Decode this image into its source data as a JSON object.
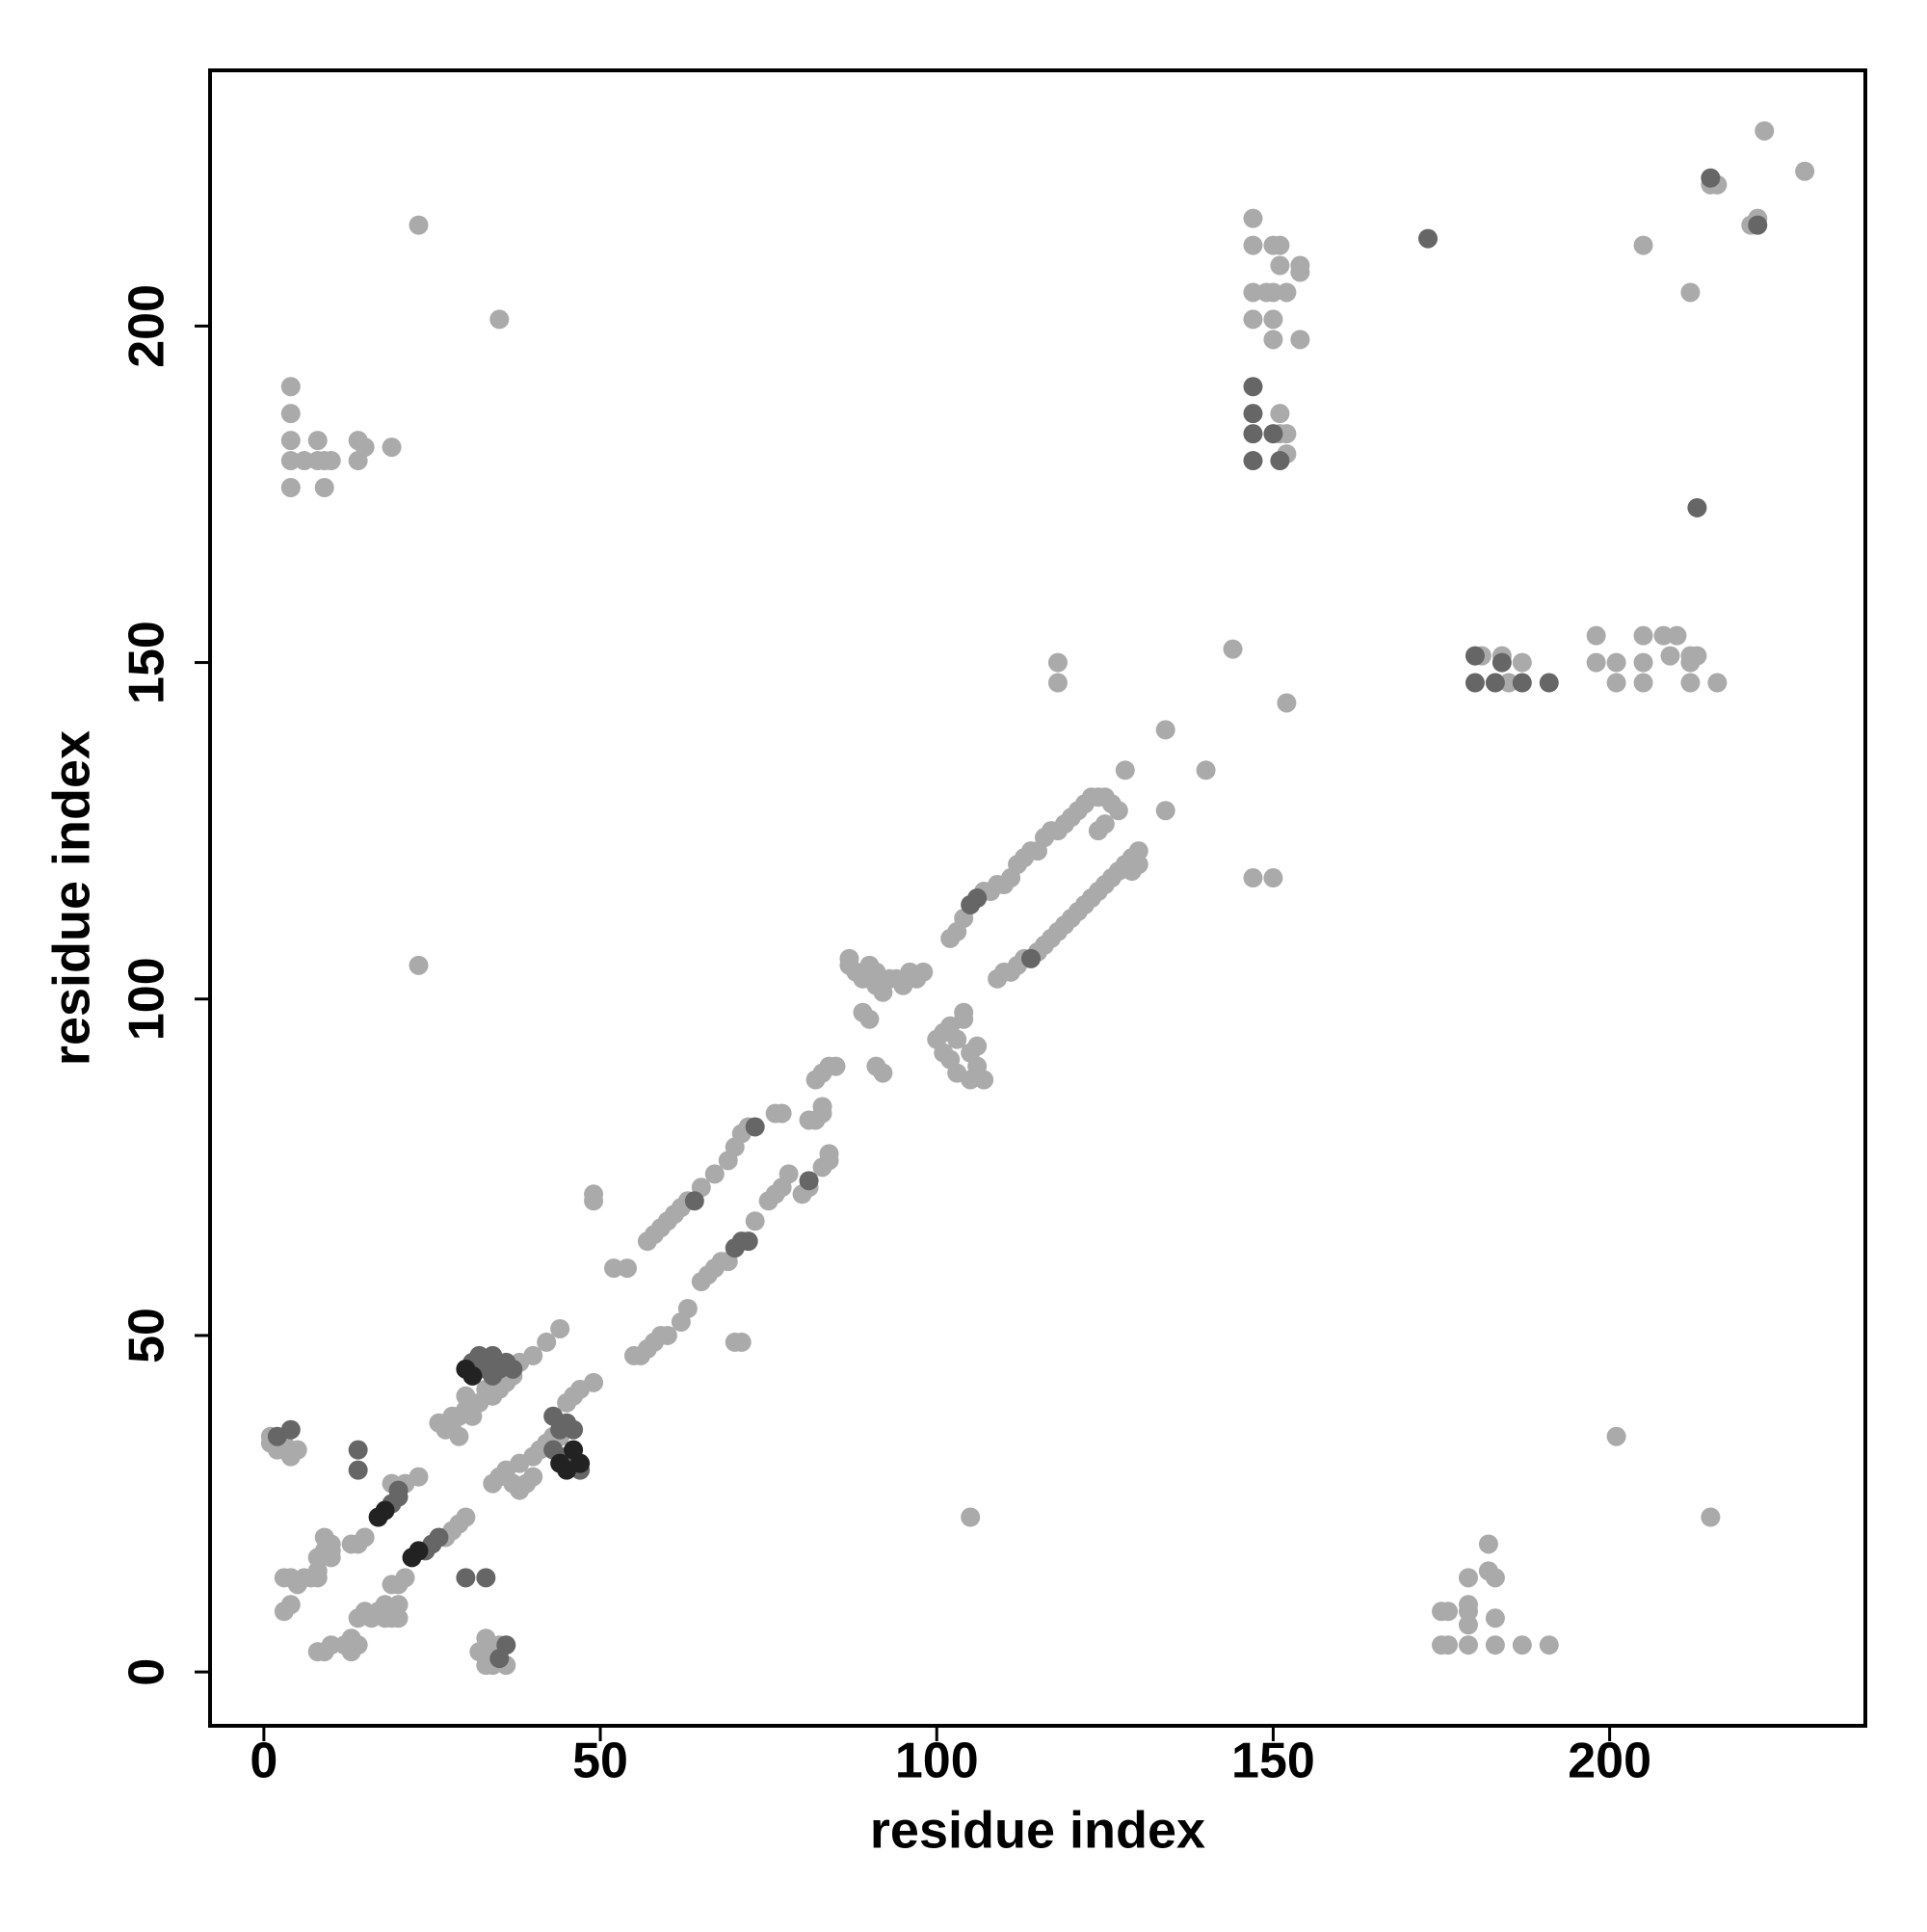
{
  "chart_data": {
    "type": "scatter",
    "xlabel": "residue index",
    "ylabel": "residue index",
    "xlim": [
      -8,
      238
    ],
    "ylim": [
      -8,
      238
    ],
    "xticks": [
      0,
      50,
      100,
      150,
      200
    ],
    "yticks": [
      0,
      50,
      100,
      150,
      200
    ],
    "series": [
      {
        "color": "#aaaaaa",
        "x": [
          4,
          4,
          4,
          4,
          4,
          6,
          8,
          8,
          9,
          9,
          10,
          14,
          14,
          15,
          19,
          23,
          35,
          23,
          147,
          147,
          147,
          147,
          149,
          150,
          151,
          150,
          150,
          151,
          152,
          154,
          154,
          150,
          154,
          151,
          151,
          152,
          152,
          205,
          212,
          215,
          216,
          223,
          229,
          221,
          222,
          144,
          152,
          118,
          118,
          147,
          150,
          181,
          184,
          185,
          187,
          198,
          198,
          201,
          201,
          205,
          205,
          205,
          208,
          210,
          212,
          212,
          213,
          212,
          216,
          209,
          201,
          215,
          105,
          175,
          176,
          175,
          176,
          179,
          179,
          179,
          179,
          179,
          182,
          182,
          183,
          183,
          183,
          187,
          191,
          1,
          1,
          2,
          3,
          3,
          4,
          5,
          3,
          4,
          5,
          3,
          4,
          6,
          7,
          8,
          8,
          8,
          9,
          9,
          10,
          10,
          10,
          13,
          14,
          15,
          8,
          9,
          10,
          12,
          13,
          13,
          14,
          14,
          15,
          16,
          17,
          18,
          18,
          19,
          20,
          20,
          20,
          19,
          21,
          19,
          21,
          23,
          30,
          29,
          27,
          28,
          32,
          33,
          33,
          34,
          34,
          36,
          35,
          33,
          26,
          27,
          28,
          28,
          29,
          29,
          30,
          30,
          31,
          32,
          33,
          34,
          35,
          36,
          37,
          38,
          40,
          42,
          44,
          34,
          35,
          36,
          37,
          38,
          38,
          39,
          40,
          40,
          41,
          42,
          43,
          44,
          45,
          46,
          47,
          49,
          49,
          49,
          52,
          54,
          57,
          58,
          59,
          60,
          61,
          62,
          63,
          65,
          67,
          69,
          70,
          71,
          72,
          76,
          77,
          82,
          83,
          84,
          85,
          87,
          87,
          88,
          89,
          90,
          90,
          91,
          91,
          92,
          93,
          94,
          95,
          96,
          97,
          98,
          89,
          90,
          55,
          56,
          57,
          58,
          59,
          60,
          62,
          63,
          65,
          66,
          67,
          68,
          69,
          73,
          70,
          71,
          75,
          76,
          77,
          78,
          80,
          81,
          81,
          82,
          83,
          83,
          84,
          84,
          83,
          91,
          92,
          100,
          101,
          101,
          102,
          102,
          103,
          103,
          104,
          104,
          105,
          105,
          106,
          106,
          107,
          102,
          103,
          104,
          107,
          108,
          109,
          110,
          111,
          112,
          113,
          114,
          115,
          116,
          117,
          118,
          119,
          120,
          121,
          122,
          123,
          124,
          125,
          126,
          127,
          125,
          124,
          109,
          110,
          111,
          112,
          113,
          115,
          116,
          117,
          118,
          119,
          120,
          121,
          122,
          123,
          124,
          125,
          126,
          127,
          128,
          129,
          130,
          130,
          129,
          128,
          134,
          134,
          140
        ],
        "values": [
          176,
          180,
          183,
          187,
          191,
          180,
          180,
          183,
          180,
          176,
          180,
          183,
          180,
          182,
          182,
          215,
          201,
          105,
          216,
          212,
          205,
          201,
          205,
          212,
          212,
          205,
          201,
          209,
          205,
          209,
          208,
          198,
          198,
          187,
          184,
          184,
          181,
          212,
          205,
          221,
          221,
          229,
          223,
          215,
          216,
          152,
          144,
          150,
          147,
          118,
          118,
          151,
          151,
          147,
          150,
          154,
          150,
          150,
          147,
          154,
          150,
          147,
          154,
          154,
          151,
          150,
          151,
          147,
          147,
          151,
          35,
          23,
          23,
          9,
          9,
          4,
          4,
          4,
          7,
          9,
          10,
          14,
          15,
          19,
          14,
          8,
          4,
          4,
          4,
          34,
          35,
          33,
          34,
          33,
          32,
          33,
          9,
          10,
          13,
          14,
          14,
          14,
          14,
          14,
          15,
          17,
          18,
          20,
          18,
          19,
          17,
          19,
          19,
          20,
          3,
          3,
          4,
          4,
          5,
          3,
          4,
          8,
          9,
          8,
          9,
          8,
          10,
          8,
          8,
          10,
          13,
          13,
          14,
          28,
          28,
          29,
          23,
          22,
          20,
          21,
          3,
          3,
          1,
          1,
          2,
          1,
          4,
          5,
          37,
          36,
          37,
          38,
          35,
          38,
          39,
          41,
          38,
          40,
          42,
          41,
          42,
          43,
          44,
          46,
          47,
          49,
          51,
          28,
          29,
          30,
          28,
          27,
          31,
          28,
          29,
          32,
          33,
          34,
          35,
          35,
          40,
          41,
          42,
          43,
          70,
          71,
          60,
          60,
          64,
          65,
          66,
          67,
          68,
          69,
          70,
          72,
          74,
          76,
          78,
          80,
          81,
          83,
          83,
          88,
          89,
          90,
          90,
          105,
          106,
          104,
          103,
          103,
          105,
          102,
          104,
          101,
          103,
          103,
          102,
          104,
          103,
          104,
          98,
          97,
          47,
          47,
          48,
          49,
          50,
          50,
          52,
          54,
          58,
          59,
          60,
          61,
          61,
          67,
          49,
          49,
          70,
          71,
          72,
          74,
          71,
          72,
          82,
          82,
          83,
          84,
          76,
          77,
          75,
          90,
          89,
          94,
          92,
          95,
          91,
          96,
          89,
          94,
          97,
          98,
          92,
          88,
          93,
          90,
          88,
          109,
          110,
          112,
          116,
          116,
          117,
          117,
          118,
          120,
          121,
          122,
          122,
          124,
          125,
          125,
          126,
          127,
          128,
          129,
          130,
          130,
          130,
          129,
          128,
          126,
          125,
          103,
          104,
          104,
          105,
          106,
          107,
          108,
          109,
          110,
          111,
          112,
          113,
          114,
          115,
          116,
          117,
          118,
          119,
          120,
          121,
          122,
          120,
          119,
          134,
          140,
          128,
          134
        ]
      },
      {
        "color": "#666666",
        "x": [
          147,
          147,
          147,
          147,
          150,
          151,
          173,
          215,
          222,
          213,
          180,
          180,
          183,
          187,
          191,
          184,
          2,
          4,
          19,
          20,
          20,
          14,
          14,
          24,
          25,
          26,
          30,
          33,
          35,
          36,
          32,
          33,
          34,
          35,
          36,
          37,
          31,
          33,
          34,
          43,
          45,
          46,
          47,
          44,
          45,
          43,
          64,
          73,
          81,
          70,
          71,
          72,
          105,
          106,
          114
        ],
        "values": [
          191,
          187,
          184,
          180,
          184,
          180,
          213,
          222,
          215,
          173,
          147,
          151,
          147,
          147,
          147,
          150,
          35,
          36,
          25,
          26,
          27,
          33,
          30,
          18,
          19,
          20,
          14,
          14,
          2,
          4,
          47,
          46,
          47,
          45,
          46,
          45,
          46,
          45,
          44,
          33,
          32,
          36,
          30,
          36,
          37,
          38,
          70,
          81,
          73,
          63,
          64,
          64,
          114,
          115,
          106
        ]
      },
      {
        "color": "#222222",
        "x": [
          17,
          18,
          22,
          23,
          30,
          31,
          44,
          45,
          46,
          47
        ],
        "values": [
          23,
          24,
          17,
          18,
          45,
          44,
          31,
          30,
          33,
          31
        ]
      }
    ]
  }
}
